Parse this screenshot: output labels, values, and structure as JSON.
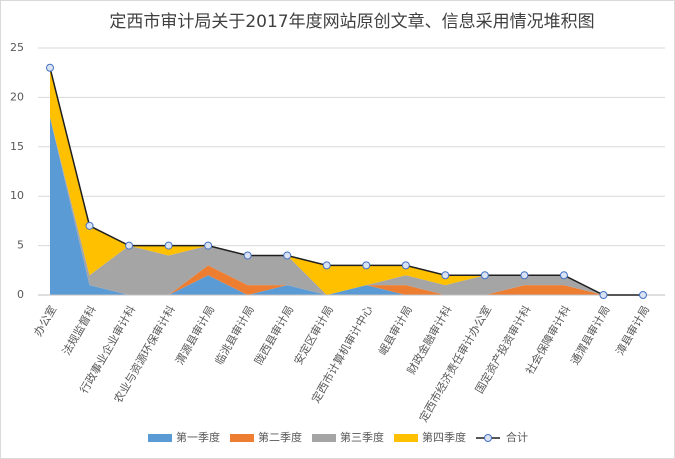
{
  "chart_data": {
    "type": "area",
    "stacked": true,
    "title": "定西市审计局关于2017年度网站原创文章、信息采用情况堆积图",
    "categories": [
      "办公室",
      "法规监督科",
      "行政事业企业审计科",
      "农业与资源环保审计科",
      "渭源县审计局",
      "临洮县审计局",
      "陇西县审计局",
      "安定区审计局",
      "定西市计算机审计中心",
      "岷县审计局",
      "财政金融审计科",
      "定西市经济责任审计办公室",
      "国定资产投资审计科",
      "社会保障审计科",
      "通渭县审计局",
      "漳县审计局"
    ],
    "series": [
      {
        "name": "第一季度",
        "color": "#5b9bd5",
        "values": [
          18,
          1,
          0,
          0,
          2,
          0,
          1,
          0,
          1,
          0,
          0,
          0,
          0,
          0,
          0,
          0
        ]
      },
      {
        "name": "第二季度",
        "color": "#ed7d31",
        "values": [
          0,
          0,
          0,
          0,
          1,
          1,
          0,
          0,
          0,
          1,
          0,
          0,
          1,
          1,
          0,
          0
        ]
      },
      {
        "name": "第三季度",
        "color": "#a5a5a5",
        "values": [
          0,
          1,
          5,
          4,
          2,
          3,
          3,
          0,
          0,
          1,
          1,
          2,
          1,
          1,
          0,
          0
        ]
      },
      {
        "name": "第四季度",
        "color": "#ffc000",
        "values": [
          5,
          5,
          0,
          1,
          0,
          0,
          0,
          3,
          2,
          1,
          1,
          0,
          0,
          0,
          0,
          0
        ]
      },
      {
        "name": "合计",
        "color": "#1f1f1f",
        "type": "line",
        "values": [
          23,
          7,
          5,
          5,
          5,
          4,
          4,
          3,
          3,
          3,
          2,
          2,
          2,
          2,
          0,
          0
        ]
      }
    ],
    "ylim": [
      0,
      25
    ],
    "yticks": [
      0,
      5,
      10,
      15,
      20,
      25
    ],
    "grid": true,
    "legend": "bottom"
  }
}
